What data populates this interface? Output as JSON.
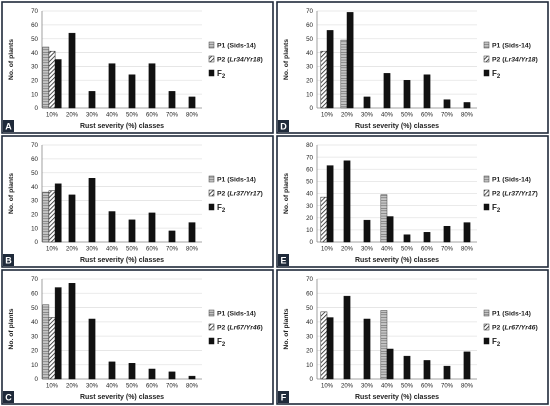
{
  "figure": {
    "colors": {
      "frame": "#1f2a3a",
      "bar": "#111111",
      "grid": "#e3e3e3",
      "label_bg": "#1f2a3a",
      "p1_fill": "#aaaaaa"
    }
  },
  "chart_data": [
    {
      "panel": "A",
      "type": "bar",
      "xlabel": "Rust severity (%) classes",
      "ylabel": "No. of plants",
      "ylim": [
        0,
        70
      ],
      "yticks": [
        0,
        10,
        20,
        30,
        40,
        50,
        60,
        70
      ],
      "categories": [
        "10%",
        "20%",
        "30%",
        "40%",
        "50%",
        "60%",
        "70%",
        "80%"
      ],
      "series": [
        {
          "name": "P1 (Sids-14)",
          "pattern": "grey-hatched",
          "values": [
            44,
            null,
            null,
            null,
            null,
            null,
            null,
            null
          ]
        },
        {
          "name": "P2 (Lr34/Yr18)",
          "pattern": "diagonal",
          "values": [
            41,
            null,
            null,
            null,
            null,
            null,
            null,
            null
          ]
        },
        {
          "name": "F2",
          "pattern": "solid",
          "values": [
            35,
            54,
            12,
            32,
            24,
            32,
            12,
            8
          ]
        }
      ],
      "legend": {
        "p1": "P1 (Sids-14)",
        "p2_prefix": "P2 (",
        "p2_genes": "Lr34/Yr18",
        "p2_suffix": ")",
        "f": "F",
        "f_sub": "2"
      },
      "grid": true,
      "legend_position": "right"
    },
    {
      "panel": "B",
      "type": "bar",
      "xlabel": "Rust severity (%) classes",
      "ylabel": "No. of plants",
      "ylim": [
        0,
        70
      ],
      "yticks": [
        0,
        10,
        20,
        30,
        40,
        50,
        60,
        70
      ],
      "categories": [
        "10%",
        "20%",
        "30%",
        "40%",
        "50%",
        "60%",
        "70%",
        "80%"
      ],
      "series": [
        {
          "name": "P1 (Sids-14)",
          "pattern": "grey-hatched",
          "values": [
            36,
            null,
            null,
            null,
            null,
            null,
            null,
            null
          ]
        },
        {
          "name": "P2 (Lr37/Yr17)",
          "pattern": "diagonal",
          "values": [
            37,
            null,
            null,
            null,
            null,
            null,
            null,
            null
          ]
        },
        {
          "name": "F2",
          "pattern": "solid",
          "values": [
            42,
            34,
            46,
            22,
            16,
            21,
            8,
            14
          ]
        }
      ],
      "legend": {
        "p1": "P1 (Sids-14)",
        "p2_prefix": "P2 (",
        "p2_genes": "Lr37/Yr17",
        "p2_suffix": ")",
        "f": "F",
        "f_sub": "2"
      },
      "grid": true,
      "legend_position": "right"
    },
    {
      "panel": "C",
      "type": "bar",
      "xlabel": "Rust severity (%) classes",
      "ylabel": "No. of plants",
      "ylim": [
        0,
        70
      ],
      "yticks": [
        0,
        10,
        20,
        30,
        40,
        50,
        60,
        70
      ],
      "categories": [
        "10%",
        "20%",
        "30%",
        "40%",
        "50%",
        "60%",
        "70%",
        "80%"
      ],
      "series": [
        {
          "name": "P1 (Sids-14)",
          "pattern": "grey-hatched",
          "values": [
            52,
            null,
            null,
            null,
            null,
            null,
            null,
            null
          ]
        },
        {
          "name": "P2 (Lr67/Yr46)",
          "pattern": "diagonal",
          "values": [
            43,
            null,
            null,
            null,
            null,
            null,
            null,
            null
          ]
        },
        {
          "name": "F2",
          "pattern": "solid",
          "values": [
            64,
            67,
            42,
            12,
            11,
            7,
            5,
            2
          ]
        }
      ],
      "legend": {
        "p1": "P1 (Sids-14)",
        "p2_prefix": "P2 (",
        "p2_genes": "Lr67/Yr46",
        "p2_suffix": ")",
        "f": "F",
        "f_sub": "2"
      },
      "grid": true,
      "legend_position": "right"
    },
    {
      "panel": "D",
      "type": "bar",
      "xlabel": "Rust severity (%) classes",
      "ylabel": "No. of plants",
      "ylim": [
        0,
        70
      ],
      "yticks": [
        0,
        10,
        20,
        30,
        40,
        50,
        60,
        70
      ],
      "categories": [
        "10%",
        "20%",
        "30%",
        "40%",
        "50%",
        "60%",
        "70%",
        "80%"
      ],
      "series": [
        {
          "name": "P1 (Sids-14)",
          "pattern": "grey-hatched",
          "values": [
            null,
            49,
            null,
            null,
            null,
            null,
            null,
            null
          ]
        },
        {
          "name": "P2 (Lr34/Yr18)",
          "pattern": "diagonal",
          "values": [
            41,
            null,
            null,
            null,
            null,
            null,
            null,
            null
          ]
        },
        {
          "name": "F2",
          "pattern": "solid",
          "values": [
            56,
            69,
            8,
            25,
            20,
            24,
            6,
            4
          ]
        }
      ],
      "legend": {
        "p1": "P1 (Sids-14)",
        "p2_prefix": "P2 (",
        "p2_genes": "Lr34/Yr18",
        "p2_suffix": ")",
        "f": "F",
        "f_sub": "2"
      },
      "grid": true,
      "legend_position": "right"
    },
    {
      "panel": "E",
      "type": "bar",
      "xlabel": "Rust severity (%) classes",
      "ylabel": "No. of plants",
      "ylim": [
        0,
        80
      ],
      "yticks": [
        0,
        10,
        20,
        30,
        40,
        50,
        60,
        70,
        80
      ],
      "categories": [
        "10%",
        "20%",
        "30%",
        "40%",
        "50%",
        "60%",
        "70%",
        "80%"
      ],
      "series": [
        {
          "name": "P1 (Sids-14)",
          "pattern": "grey-hatched",
          "values": [
            null,
            null,
            null,
            39,
            null,
            null,
            null,
            null
          ]
        },
        {
          "name": "P2 (Lr37/Yr17)",
          "pattern": "diagonal",
          "values": [
            37,
            null,
            null,
            null,
            null,
            null,
            null,
            null
          ]
        },
        {
          "name": "F2",
          "pattern": "solid",
          "values": [
            63,
            67,
            18,
            21,
            6,
            8,
            13,
            16
          ]
        }
      ],
      "legend": {
        "p1": "P1 (Sids-14)",
        "p2_prefix": "P2 (",
        "p2_genes": "Lr37/Yr17",
        "p2_suffix": ")",
        "f": "F",
        "f_sub": "2"
      },
      "grid": true,
      "legend_position": "right"
    },
    {
      "panel": "F",
      "type": "bar",
      "xlabel": "Rust severity (%) classes",
      "ylabel": "No. of plants",
      "ylim": [
        0,
        70
      ],
      "yticks": [
        0,
        10,
        20,
        30,
        40,
        50,
        60,
        70
      ],
      "categories": [
        "10%",
        "20%",
        "30%",
        "40%",
        "50%",
        "60%",
        "70%",
        "80%"
      ],
      "series": [
        {
          "name": "P1 (Sids-14)",
          "pattern": "grey-hatched",
          "values": [
            null,
            null,
            null,
            48,
            null,
            null,
            null,
            null
          ]
        },
        {
          "name": "P2 (Lr67/Yr46)",
          "pattern": "diagonal",
          "values": [
            47,
            null,
            null,
            null,
            null,
            null,
            null,
            null
          ]
        },
        {
          "name": "F2",
          "pattern": "solid",
          "values": [
            43,
            58,
            42,
            21,
            16,
            13,
            9,
            19
          ]
        }
      ],
      "legend": {
        "p1": "P1 (Sids-14)",
        "p2_prefix": "P2 (",
        "p2_genes": "Lr67/Yr46",
        "p2_suffix": ")",
        "f": "F",
        "f_sub": "2"
      },
      "grid": true,
      "legend_position": "right"
    }
  ]
}
